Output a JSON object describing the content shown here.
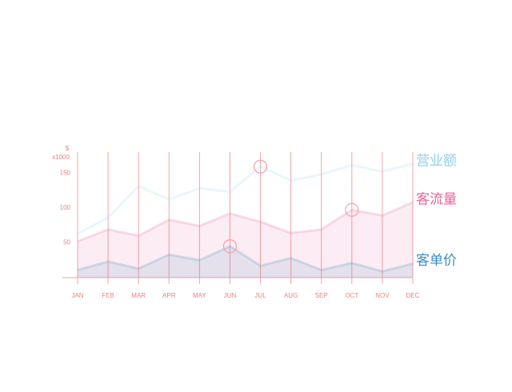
{
  "chart_data": {
    "type": "area",
    "y_unit": "$",
    "y_scale_label": "x1000",
    "categories": [
      "JAN",
      "FEB",
      "MAR",
      "APR",
      "MAY",
      "JUN",
      "JUL",
      "AUG",
      "SEP",
      "OCT",
      "NOV",
      "DEC"
    ],
    "ylim": [
      0,
      180
    ],
    "yticks": [
      50,
      100,
      150
    ],
    "grid": true,
    "series": [
      {
        "name": "营业额",
        "color": "#8fd0ec",
        "filled": false,
        "highlight": 6,
        "values": [
          63,
          86,
          131,
          112,
          128,
          123,
          159,
          139,
          148,
          161,
          152,
          163
        ]
      },
      {
        "name": "客流量",
        "color": "#e8609a",
        "filled": true,
        "highlight": 9,
        "values": [
          52,
          69,
          60,
          83,
          74,
          92,
          80,
          64,
          69,
          97,
          89,
          108
        ]
      },
      {
        "name": "客单价",
        "color": "#3a8cc0",
        "filled": true,
        "highlight": 5,
        "values": [
          11,
          23,
          13,
          33,
          25,
          45,
          17,
          28,
          11,
          21,
          9,
          20
        ]
      }
    ]
  }
}
